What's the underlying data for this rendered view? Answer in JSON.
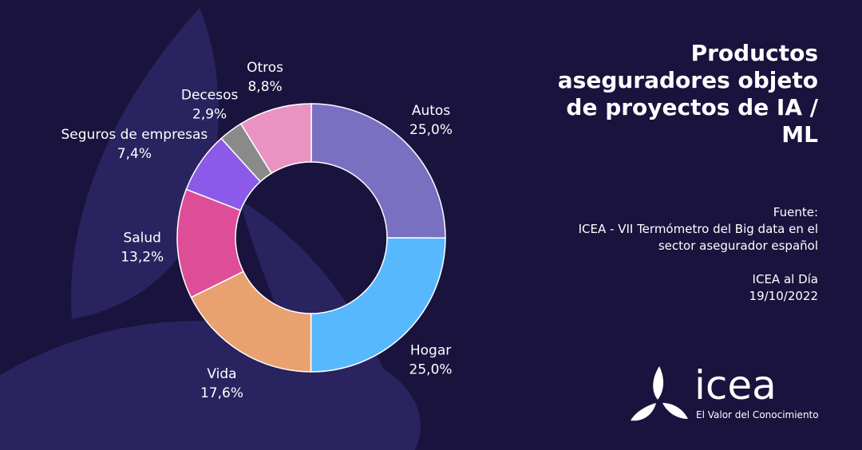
{
  "chart_data": {
    "type": "donut",
    "title": "Productos aseguradores objeto de proyectos de IA / ML",
    "categories": [
      "Autos",
      "Hogar",
      "Vida",
      "Salud",
      "Seguros de empresas",
      "Decesos",
      "Otros"
    ],
    "values": [
      25.0,
      25.0,
      17.6,
      13.2,
      7.4,
      2.9,
      8.8
    ],
    "value_labels": [
      "25,0%",
      "25,0%",
      "17,6%",
      "13,2%",
      "7,4%",
      "2,9%",
      "8,8%"
    ],
    "colors": [
      "#7a70c2",
      "#58b8fe",
      "#e9a170",
      "#de4d97",
      "#8b5ae9",
      "#8a8a8a",
      "#ea93c3"
    ]
  },
  "source": {
    "heading": "Fuente:",
    "text": "ICEA - VII Termómetro del Big data en el sector asegurador español",
    "publication": "ICEA al Día",
    "date": "19/10/2022"
  },
  "logo": {
    "name": "icea",
    "tagline": "El Valor del Conocimiento"
  }
}
